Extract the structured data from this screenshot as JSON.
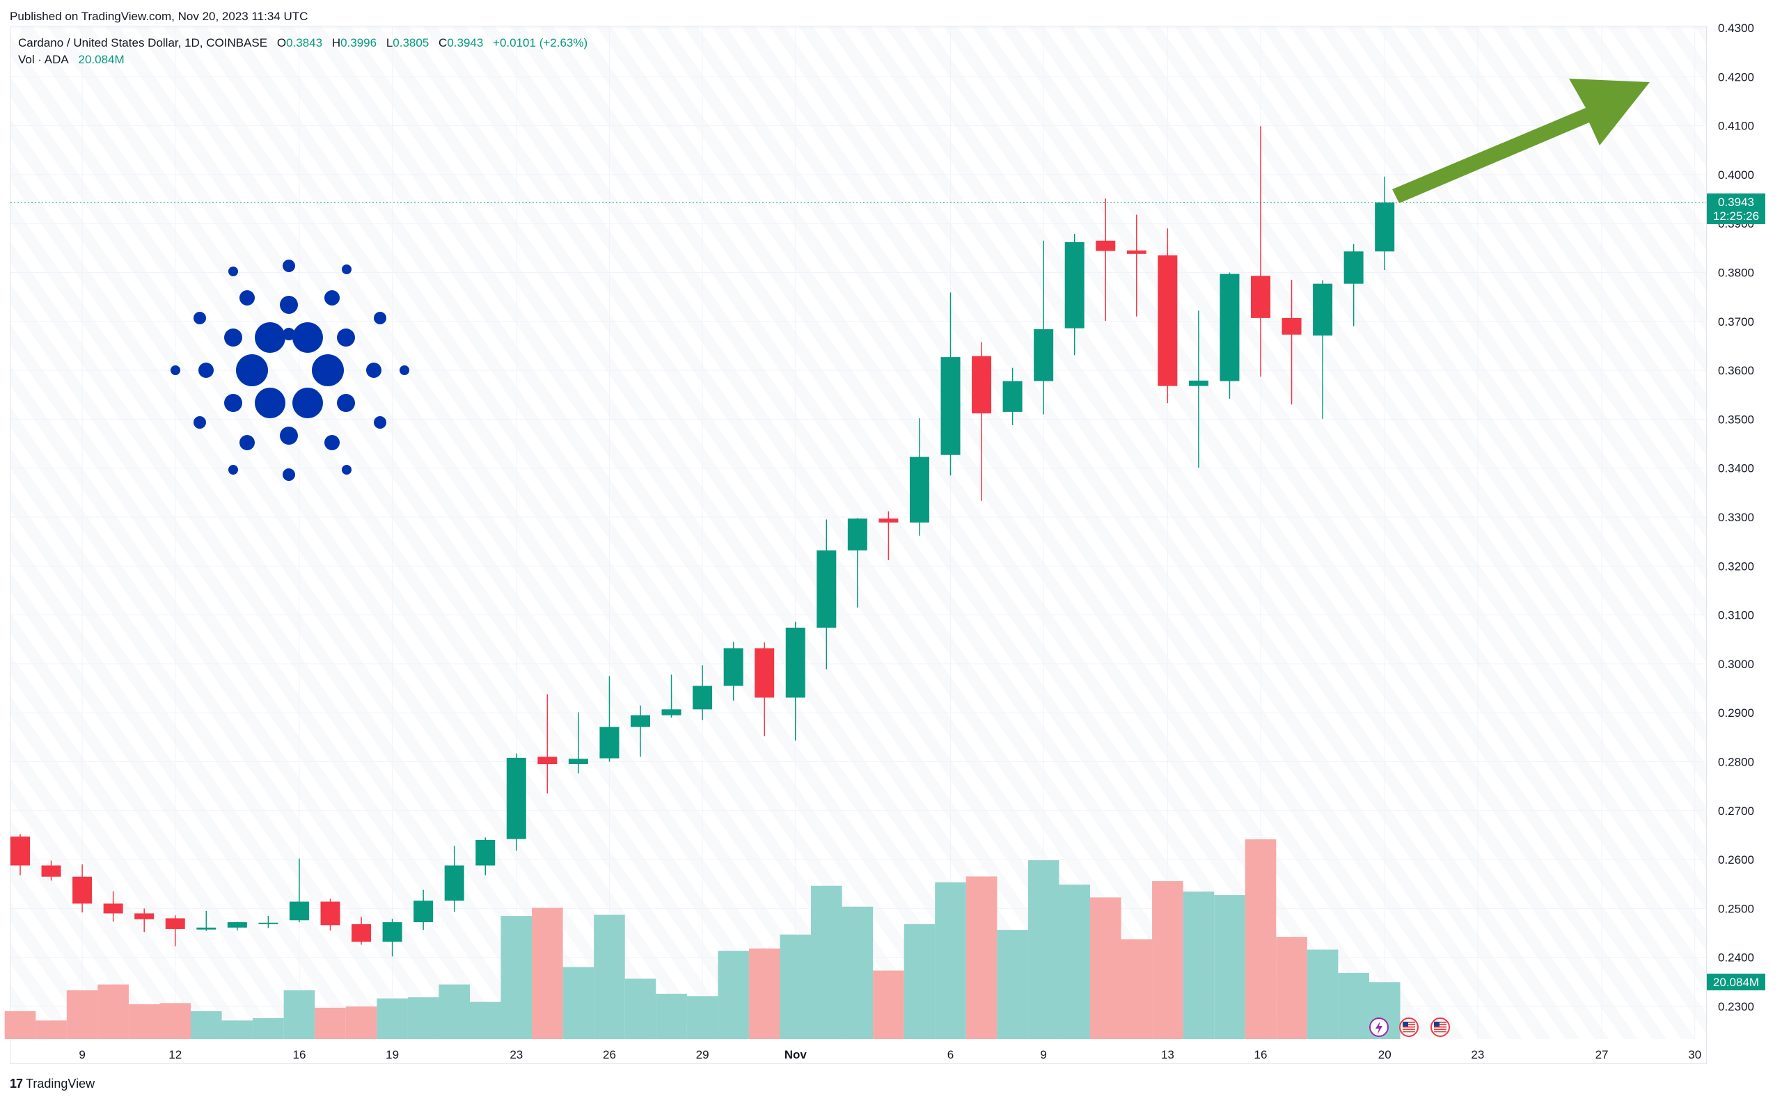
{
  "header": {
    "published": "Published on TradingView.com, Nov 20, 2023 11:34 UTC"
  },
  "legend": {
    "symbol": "Cardano / United States Dollar, 1D, COINBASE",
    "o_label": "O",
    "o_value": "0.3843",
    "h_label": "H",
    "h_value": "0.3996",
    "l_label": "L",
    "l_value": "0.3805",
    "c_label": "C",
    "c_value": "0.3943",
    "change": "+0.0101 (+2.63%)",
    "vol_label": "Vol · ADA",
    "vol_value": "20.084M"
  },
  "footer": {
    "logo_glyph": "17",
    "brand": "TradingView"
  },
  "colors": {
    "up": "#089981",
    "down": "#f23645",
    "up_volume": "#92d2cc",
    "down_volume": "#f7a9a7",
    "arrow": "#6a9d2f",
    "logo": "#0033ad",
    "grid": "#f0f3fa"
  },
  "icons": [
    "cardano-logo-icon",
    "lightning-event-icon",
    "us-flag-event-icon"
  ],
  "chart_data": {
    "type": "candlestick",
    "title": "Cardano / United States Dollar, 1D, COINBASE",
    "ylim": [
      0.223,
      0.43
    ],
    "grid": true,
    "price_ticks": [
      "0.4300",
      "0.4200",
      "0.4100",
      "0.4000",
      "0.3900",
      "0.3800",
      "0.3700",
      "0.3600",
      "0.3500",
      "0.3400",
      "0.3300",
      "0.3200",
      "0.3100",
      "0.3000",
      "0.2900",
      "0.2800",
      "0.2700",
      "0.2600",
      "0.2500",
      "0.2400",
      "0.2300"
    ],
    "x_ticks": [
      "9",
      "12",
      "16",
      "19",
      "23",
      "26",
      "29",
      "Nov",
      "6",
      "9",
      "13",
      "16",
      "20",
      "23",
      "27",
      "30"
    ],
    "last_price": "0.3943",
    "countdown": "12:25:26",
    "volume_label": "20.084M",
    "candles": [
      {
        "o": 0.2647,
        "h": 0.2652,
        "l": 0.2568,
        "c": 0.2588
      },
      {
        "o": 0.2588,
        "h": 0.2598,
        "l": 0.2557,
        "c": 0.2565
      },
      {
        "o": 0.2565,
        "h": 0.259,
        "l": 0.2492,
        "c": 0.251
      },
      {
        "o": 0.251,
        "h": 0.2535,
        "l": 0.2473,
        "c": 0.249
      },
      {
        "o": 0.249,
        "h": 0.25,
        "l": 0.2452,
        "c": 0.2478
      },
      {
        "o": 0.248,
        "h": 0.2486,
        "l": 0.2423,
        "c": 0.2458
      },
      {
        "o": 0.2457,
        "h": 0.2495,
        "l": 0.2454,
        "c": 0.2461
      },
      {
        "o": 0.2461,
        "h": 0.2473,
        "l": 0.2455,
        "c": 0.2472
      },
      {
        "o": 0.247,
        "h": 0.2485,
        "l": 0.246,
        "c": 0.2471
      },
      {
        "o": 0.2476,
        "h": 0.2602,
        "l": 0.2472,
        "c": 0.2514
      },
      {
        "o": 0.2514,
        "h": 0.252,
        "l": 0.2455,
        "c": 0.2466
      },
      {
        "o": 0.2468,
        "h": 0.2483,
        "l": 0.2426,
        "c": 0.2432
      },
      {
        "o": 0.2432,
        "h": 0.2479,
        "l": 0.2402,
        "c": 0.2472
      },
      {
        "o": 0.2472,
        "h": 0.2538,
        "l": 0.2456,
        "c": 0.2516
      },
      {
        "o": 0.2516,
        "h": 0.2628,
        "l": 0.2493,
        "c": 0.2588
      },
      {
        "o": 0.2588,
        "h": 0.2645,
        "l": 0.2568,
        "c": 0.264
      },
      {
        "o": 0.2642,
        "h": 0.2817,
        "l": 0.2618,
        "c": 0.2808
      },
      {
        "o": 0.281,
        "h": 0.2938,
        "l": 0.2735,
        "c": 0.2795
      },
      {
        "o": 0.2795,
        "h": 0.2901,
        "l": 0.2776,
        "c": 0.2806
      },
      {
        "o": 0.2807,
        "h": 0.2975,
        "l": 0.28,
        "c": 0.2871
      },
      {
        "o": 0.2871,
        "h": 0.2915,
        "l": 0.281,
        "c": 0.2895
      },
      {
        "o": 0.2895,
        "h": 0.2978,
        "l": 0.289,
        "c": 0.2907
      },
      {
        "o": 0.2907,
        "h": 0.2997,
        "l": 0.2885,
        "c": 0.2955
      },
      {
        "o": 0.2955,
        "h": 0.3045,
        "l": 0.2925,
        "c": 0.3032
      },
      {
        "o": 0.3032,
        "h": 0.3044,
        "l": 0.2852,
        "c": 0.2931
      },
      {
        "o": 0.2931,
        "h": 0.3086,
        "l": 0.2843,
        "c": 0.3074
      },
      {
        "o": 0.3074,
        "h": 0.3295,
        "l": 0.2989,
        "c": 0.3232
      },
      {
        "o": 0.3232,
        "h": 0.3298,
        "l": 0.3115,
        "c": 0.3297
      },
      {
        "o": 0.3297,
        "h": 0.3312,
        "l": 0.3212,
        "c": 0.3289
      },
      {
        "o": 0.3289,
        "h": 0.3502,
        "l": 0.3262,
        "c": 0.3423
      },
      {
        "o": 0.3427,
        "h": 0.3759,
        "l": 0.3385,
        "c": 0.3627
      },
      {
        "o": 0.3629,
        "h": 0.3658,
        "l": 0.3333,
        "c": 0.3512
      },
      {
        "o": 0.3515,
        "h": 0.3605,
        "l": 0.3488,
        "c": 0.3578
      },
      {
        "o": 0.3578,
        "h": 0.3865,
        "l": 0.351,
        "c": 0.3684
      },
      {
        "o": 0.3686,
        "h": 0.3879,
        "l": 0.3631,
        "c": 0.3862
      },
      {
        "o": 0.3865,
        "h": 0.3951,
        "l": 0.3701,
        "c": 0.3844
      },
      {
        "o": 0.3845,
        "h": 0.3918,
        "l": 0.371,
        "c": 0.3838
      },
      {
        "o": 0.3835,
        "h": 0.389,
        "l": 0.3533,
        "c": 0.3568
      },
      {
        "o": 0.3568,
        "h": 0.3722,
        "l": 0.3401,
        "c": 0.3579
      },
      {
        "o": 0.3578,
        "h": 0.38,
        "l": 0.3542,
        "c": 0.3797
      },
      {
        "o": 0.3793,
        "h": 0.4099,
        "l": 0.3587,
        "c": 0.3707
      },
      {
        "o": 0.3707,
        "h": 0.3785,
        "l": 0.353,
        "c": 0.3673
      },
      {
        "o": 0.3671,
        "h": 0.3784,
        "l": 0.3501,
        "c": 0.3777
      },
      {
        "o": 0.3777,
        "h": 0.3858,
        "l": 0.369,
        "c": 0.3843
      },
      {
        "o": 0.3843,
        "h": 0.3996,
        "l": 0.3805,
        "c": 0.3943
      }
    ],
    "volume": [
      0.24,
      0.16,
      0.42,
      0.47,
      0.3,
      0.31,
      0.24,
      0.16,
      0.18,
      0.42,
      0.27,
      0.28,
      0.35,
      0.36,
      0.47,
      0.32,
      1.06,
      1.13,
      0.62,
      1.07,
      0.52,
      0.39,
      0.37,
      0.76,
      0.78,
      0.9,
      1.32,
      1.14,
      0.59,
      0.99,
      1.35,
      1.4,
      0.94,
      1.54,
      1.33,
      1.22,
      0.86,
      1.36,
      1.27,
      1.24,
      1.72,
      0.88,
      0.77,
      0.57,
      0.49
    ]
  }
}
